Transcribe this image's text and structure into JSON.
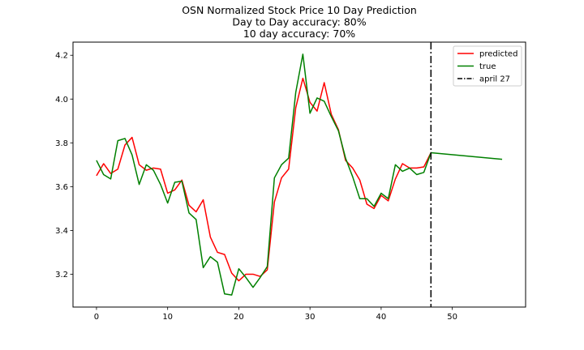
{
  "chart_data": {
    "type": "line",
    "title_lines": [
      "OSN Normalized Stock Price 10 Day Prediction",
      "Day to Day accuracy: 80%",
      "10 day accuracy: 70%"
    ],
    "xlim": [
      -3.3,
      60.3
    ],
    "ylim": [
      3.05,
      4.26
    ],
    "xticks": [
      0,
      10,
      20,
      30,
      40,
      50
    ],
    "yticks": [
      3.2,
      3.4,
      3.6,
      3.8,
      4.0,
      4.2
    ],
    "xtick_labels": [
      "0",
      "10",
      "20",
      "30",
      "40",
      "50"
    ],
    "ytick_labels": [
      "3.2",
      "3.4",
      "3.6",
      "3.8",
      "4.0",
      "4.2"
    ],
    "grid": false,
    "legend_position": "top-right",
    "series": [
      {
        "name": "predicted",
        "color": "#ff0000",
        "x": [
          0,
          1,
          2,
          3,
          4,
          5,
          6,
          7,
          8,
          9,
          10,
          11,
          12,
          13,
          14,
          15,
          16,
          17,
          18,
          19,
          20,
          21,
          22,
          23,
          24,
          25,
          26,
          27,
          28,
          29,
          30,
          31,
          32,
          33,
          34,
          35,
          36,
          37,
          38,
          39,
          40,
          41,
          42,
          43,
          44,
          45,
          46,
          47
        ],
        "y": [
          3.65,
          3.705,
          3.66,
          3.68,
          3.79,
          3.825,
          3.7,
          3.675,
          3.685,
          3.68,
          3.57,
          3.585,
          3.63,
          3.515,
          3.485,
          3.54,
          3.37,
          3.3,
          3.29,
          3.205,
          3.17,
          3.2,
          3.2,
          3.19,
          3.22,
          3.53,
          3.64,
          3.68,
          3.96,
          4.095,
          3.985,
          3.945,
          4.075,
          3.93,
          3.86,
          3.72,
          3.685,
          3.63,
          3.52,
          3.5,
          3.56,
          3.535,
          3.635,
          3.705,
          3.685,
          3.685,
          3.69,
          3.755
        ]
      },
      {
        "name": "true",
        "color": "#008000",
        "x": [
          0,
          1,
          2,
          3,
          4,
          5,
          6,
          7,
          8,
          9,
          10,
          11,
          12,
          13,
          14,
          15,
          16,
          17,
          18,
          19,
          20,
          21,
          22,
          23,
          24,
          25,
          26,
          27,
          28,
          29,
          30,
          31,
          32,
          33,
          34,
          35,
          36,
          37,
          38,
          39,
          40,
          41,
          42,
          43,
          44,
          45,
          46,
          47,
          57
        ],
        "y": [
          3.72,
          3.655,
          3.635,
          3.81,
          3.82,
          3.745,
          3.61,
          3.7,
          3.675,
          3.61,
          3.525,
          3.62,
          3.625,
          3.48,
          3.45,
          3.23,
          3.28,
          3.255,
          3.11,
          3.105,
          3.225,
          3.185,
          3.14,
          3.185,
          3.235,
          3.64,
          3.7,
          3.73,
          4.03,
          4.205,
          3.935,
          4.005,
          3.99,
          3.92,
          3.855,
          3.73,
          3.645,
          3.545,
          3.545,
          3.51,
          3.57,
          3.545,
          3.7,
          3.67,
          3.685,
          3.655,
          3.665,
          3.755,
          3.725
        ]
      }
    ],
    "vline": {
      "x": 47,
      "label": "april 27",
      "color": "#000000",
      "style": "dashdot"
    }
  }
}
